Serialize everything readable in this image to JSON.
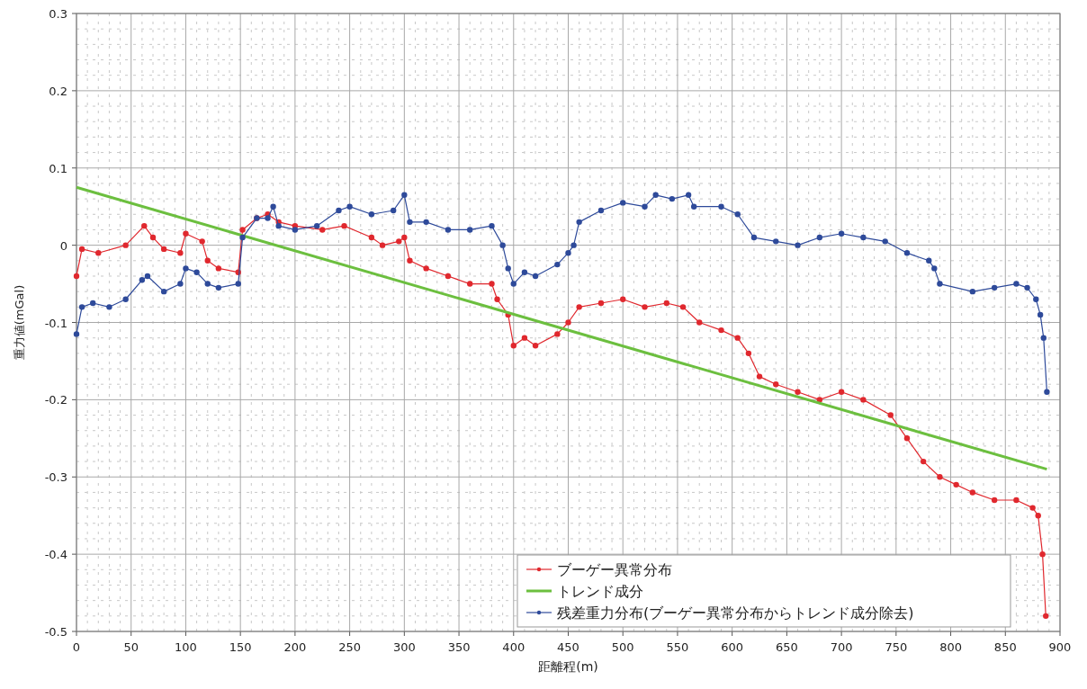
{
  "chart_data": {
    "type": "line",
    "xlabel": "距離程(m)",
    "ylabel": "重力値(mGal)",
    "xlim": [
      0,
      900
    ],
    "xticks": [
      0,
      50,
      100,
      150,
      200,
      250,
      300,
      350,
      400,
      450,
      500,
      550,
      600,
      650,
      700,
      750,
      800,
      850,
      900
    ],
    "ylim": [
      -0.5,
      0.3
    ],
    "yticks": [
      -0.5,
      -0.4,
      -0.3,
      -0.2,
      -0.1,
      0,
      0.1,
      0.2,
      0.3
    ],
    "grid": true,
    "legend": "bottom right",
    "series": [
      {
        "name": "ブーゲー異常分布",
        "color": "#e0282e",
        "marker": "circle",
        "x": [
          0,
          5,
          20,
          45,
          62,
          70,
          80,
          95,
          100,
          115,
          120,
          130,
          148,
          152,
          165,
          175,
          185,
          200,
          225,
          245,
          270,
          280,
          295,
          300,
          305,
          320,
          340,
          360,
          380,
          385,
          395,
          400,
          410,
          420,
          440,
          450,
          460,
          480,
          500,
          520,
          540,
          555,
          570,
          590,
          605,
          615,
          625,
          640,
          660,
          680,
          700,
          720,
          745,
          760,
          775,
          790,
          805,
          820,
          840,
          860,
          875,
          880,
          884,
          887
        ],
        "values": [
          -0.04,
          -0.005,
          -0.01,
          0,
          0.025,
          0.01,
          -0.005,
          -0.01,
          0.015,
          0.005,
          -0.02,
          -0.03,
          -0.035,
          0.02,
          0.035,
          0.04,
          0.03,
          0.025,
          0.02,
          0.025,
          0.01,
          0,
          0.005,
          0.01,
          -0.02,
          -0.03,
          -0.04,
          -0.05,
          -0.05,
          -0.07,
          -0.09,
          -0.13,
          -0.12,
          -0.13,
          -0.115,
          -0.1,
          -0.08,
          -0.075,
          -0.07,
          -0.08,
          -0.075,
          -0.08,
          -0.1,
          -0.11,
          -0.12,
          -0.14,
          -0.17,
          -0.18,
          -0.19,
          -0.2,
          -0.19,
          -0.2,
          -0.22,
          -0.25,
          -0.28,
          -0.3,
          -0.31,
          -0.32,
          -0.33,
          -0.33,
          -0.34,
          -0.35,
          -0.4,
          -0.48
        ]
      },
      {
        "name": "トレンド成分",
        "color": "#6cbf3f",
        "marker": "none",
        "x": [
          0,
          888
        ],
        "values": [
          0.075,
          -0.29
        ]
      },
      {
        "name": "残差重力分布(ブーゲー異常分布からトレンド成分除去)",
        "color": "#2e4a9a",
        "marker": "circle",
        "x": [
          0,
          5,
          15,
          30,
          45,
          60,
          65,
          80,
          95,
          100,
          110,
          120,
          130,
          148,
          152,
          165,
          175,
          180,
          185,
          200,
          220,
          240,
          250,
          270,
          290,
          300,
          305,
          320,
          340,
          360,
          380,
          390,
          395,
          400,
          410,
          420,
          440,
          450,
          455,
          460,
          480,
          500,
          520,
          530,
          545,
          560,
          565,
          590,
          605,
          620,
          640,
          660,
          680,
          700,
          720,
          740,
          760,
          780,
          785,
          790,
          820,
          840,
          860,
          870,
          878,
          882,
          885,
          888
        ],
        "values": [
          -0.115,
          -0.08,
          -0.075,
          -0.08,
          -0.07,
          -0.045,
          -0.04,
          -0.06,
          -0.05,
          -0.03,
          -0.035,
          -0.05,
          -0.055,
          -0.05,
          0.01,
          0.035,
          0.035,
          0.05,
          0.025,
          0.02,
          0.025,
          0.045,
          0.05,
          0.04,
          0.045,
          0.065,
          0.03,
          0.03,
          0.02,
          0.02,
          0.025,
          0,
          -0.03,
          -0.05,
          -0.035,
          -0.04,
          -0.025,
          -0.01,
          0,
          0.03,
          0.045,
          0.055,
          0.05,
          0.065,
          0.06,
          0.065,
          0.05,
          0.05,
          0.04,
          0.01,
          0.005,
          0,
          0.01,
          0.015,
          0.01,
          0.005,
          -0.01,
          -0.02,
          -0.03,
          -0.05,
          -0.06,
          -0.055,
          -0.05,
          -0.055,
          -0.07,
          -0.09,
          -0.12,
          -0.19
        ]
      }
    ]
  }
}
